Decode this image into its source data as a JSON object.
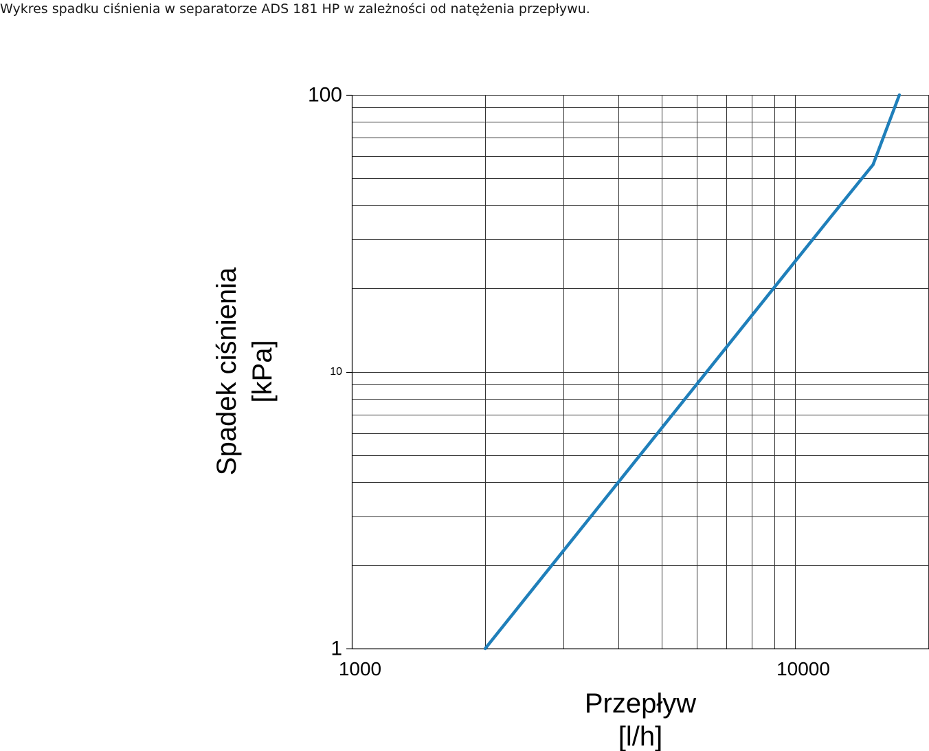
{
  "caption": "Wykres spadku ciśnienia w separatorze ADS 181 HP w zależności od natężenia przepływu.",
  "chart_data": {
    "type": "line",
    "title": "",
    "xlabel": [
      "Przepływ",
      "[l/h]"
    ],
    "ylabel": [
      "Spadek ciśnienia",
      "[kPa]"
    ],
    "x_scale": "log",
    "y_scale": "log",
    "xlim": [
      1000,
      30000
    ],
    "ylim": [
      1,
      100
    ],
    "x_ticks": [
      {
        "value": 1000,
        "label": "1000"
      },
      {
        "value": 10000,
        "label": "10000"
      }
    ],
    "y_ticks": [
      {
        "value": 1,
        "label": "1",
        "style": "major"
      },
      {
        "value": 10,
        "label": "10",
        "style": "minor"
      },
      {
        "value": 100,
        "label": "100",
        "style": "major"
      }
    ],
    "grid": true,
    "series": [
      {
        "x": [
          2000,
          3000,
          4000,
          5000,
          6000,
          8000,
          10000,
          12000,
          15000,
          17200
        ],
        "y": [
          1.0,
          2.25,
          4.0,
          6.25,
          9.0,
          16.0,
          25.0,
          36.0,
          56.0,
          100.0
        ]
      }
    ],
    "colors": {
      "line": "#1f7fba",
      "grid": "#333333"
    }
  }
}
